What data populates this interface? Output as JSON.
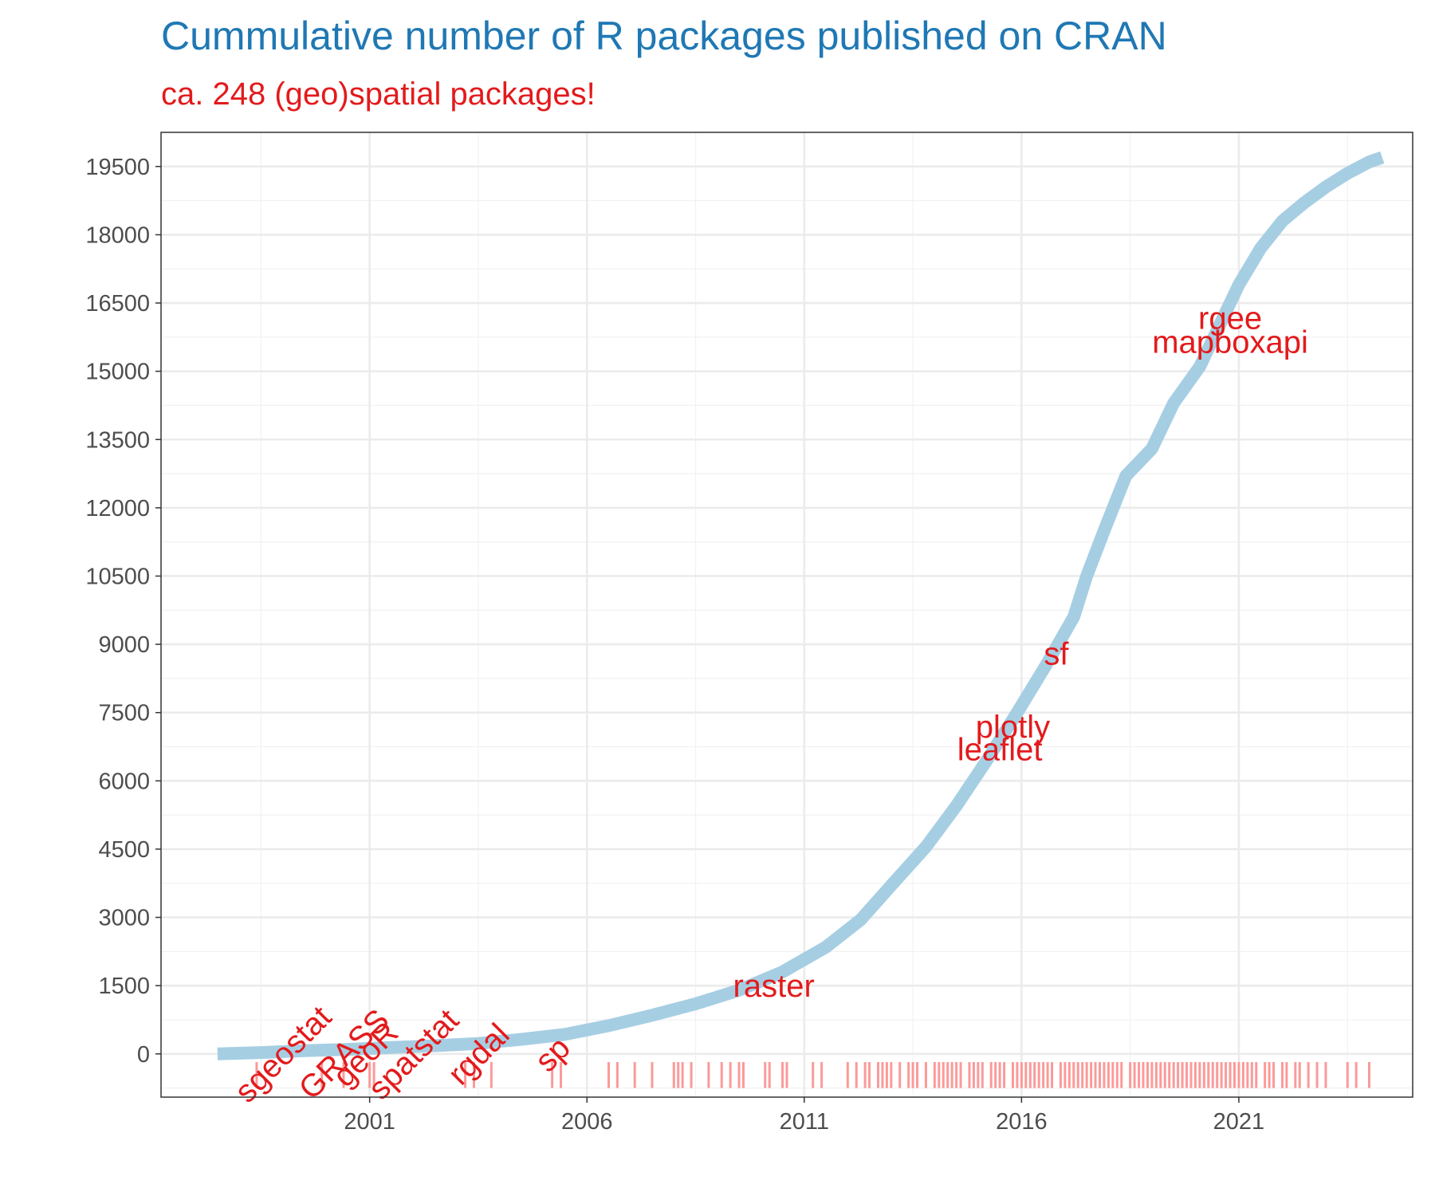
{
  "chart_data": {
    "type": "line",
    "title": "Cummulative number of R packages published on CRAN",
    "subtitle": "ca. 248 (geo)spatial packages!",
    "xlabel": "",
    "ylabel": "",
    "x_ticks": [
      "2001",
      "2006",
      "2011",
      "2016",
      "2021"
    ],
    "y_ticks": [
      0,
      1500,
      3000,
      4500,
      6000,
      7500,
      9000,
      10500,
      12000,
      13500,
      15000,
      16500,
      18000,
      19500
    ],
    "xlim": [
      1996.2,
      2025.0
    ],
    "ylim": [
      -950,
      20250
    ],
    "grid": true,
    "legend": "none",
    "colors": {
      "line": "#a6cee3",
      "labels": "#e31a1c",
      "rug": "#fb9a99",
      "title": "#1f78b4"
    },
    "series": [
      {
        "x": [
          1997.5,
          1998.5,
          1999.5,
          2000.5,
          2001.5,
          2002.5,
          2003.5,
          2004.5,
          2005.5,
          2006.5,
          2007.5,
          2008.5,
          2009.5,
          2010.5,
          2011.5,
          2012.3,
          2013.0,
          2013.8,
          2014.5,
          2015.2,
          2015.9,
          2016.6,
          2017.2,
          2017.5,
          2017.9,
          2018.4,
          2019.0,
          2019.5,
          2020.1,
          2020.6,
          2021.0,
          2021.5,
          2022.0,
          2022.5,
          2023.0,
          2023.5,
          2024.0,
          2024.3
        ],
        "y": [
          0,
          30,
          70,
          100,
          140,
          180,
          230,
          320,
          430,
          620,
          850,
          1100,
          1400,
          1800,
          2350,
          2950,
          3700,
          4550,
          5450,
          6450,
          7500,
          8600,
          9600,
          10500,
          11500,
          12700,
          13300,
          14300,
          15100,
          16100,
          16900,
          17700,
          18300,
          18700,
          19050,
          19350,
          19600,
          19700
        ]
      }
    ],
    "packages": [
      {
        "name": "sgeostat",
        "x": 1999.0,
        "y": 0,
        "rotate": -45
      },
      {
        "name": "GRASS",
        "x": 2000.4,
        "y": 0,
        "rotate": -45
      },
      {
        "name": "geoR",
        "x": 2000.9,
        "y": 0,
        "rotate": -45
      },
      {
        "name": "spatstat",
        "x": 2002.0,
        "y": 0,
        "rotate": -45
      },
      {
        "name": "rgdal",
        "x": 2003.5,
        "y": 0,
        "rotate": -45
      },
      {
        "name": "sp",
        "x": 2005.2,
        "y": 0,
        "rotate": -45
      },
      {
        "name": "raster",
        "x": 2010.3,
        "y": 1500,
        "rotate": 0
      },
      {
        "name": "leaflet",
        "x": 2015.5,
        "y": 6700,
        "rotate": 0
      },
      {
        "name": "plotly",
        "x": 2015.8,
        "y": 7200,
        "rotate": 0
      },
      {
        "name": "sf",
        "x": 2016.8,
        "y": 8800,
        "rotate": 0
      },
      {
        "name": "mapboxapi",
        "x": 2020.8,
        "y": 15650,
        "rotate": 0
      },
      {
        "name": "rgee",
        "x": 2020.8,
        "y": 16180,
        "rotate": 0
      }
    ],
    "rug_x": [
      1998.4,
      1999.9,
      2000.4,
      2001.0,
      2001.1,
      2003.2,
      2003.4,
      2003.8,
      2005.2,
      2005.4,
      2006.5,
      2006.7,
      2007.1,
      2007.5,
      2008.0,
      2008.1,
      2008.2,
      2008.4,
      2008.8,
      2009.1,
      2009.3,
      2009.5,
      2009.6,
      2010.1,
      2010.2,
      2010.5,
      2010.6,
      2011.2,
      2011.4,
      2012.0,
      2012.2,
      2012.4,
      2012.5,
      2012.7,
      2012.8,
      2012.9,
      2013.0,
      2013.2,
      2013.4,
      2013.5,
      2013.6,
      2013.8,
      2014.0,
      2014.1,
      2014.2,
      2014.3,
      2014.4,
      2014.5,
      2014.6,
      2014.8,
      2014.9,
      2015.0,
      2015.1,
      2015.3,
      2015.4,
      2015.5,
      2015.6,
      2015.8,
      2015.9,
      2016.0,
      2016.1,
      2016.2,
      2016.3,
      2016.4,
      2016.5,
      2016.6,
      2016.7,
      2016.9,
      2017.0,
      2017.1,
      2017.2,
      2017.3,
      2017.4,
      2017.5,
      2017.6,
      2017.7,
      2017.8,
      2017.9,
      2018.0,
      2018.1,
      2018.2,
      2018.3,
      2018.5,
      2018.6,
      2018.7,
      2018.8,
      2018.9,
      2019.0,
      2019.1,
      2019.2,
      2019.3,
      2019.4,
      2019.5,
      2019.6,
      2019.7,
      2019.8,
      2019.9,
      2020.0,
      2020.1,
      2020.2,
      2020.3,
      2020.4,
      2020.5,
      2020.6,
      2020.7,
      2020.8,
      2020.9,
      2021.0,
      2021.1,
      2021.2,
      2021.3,
      2021.4,
      2021.6,
      2021.7,
      2021.8,
      2022.0,
      2022.1,
      2022.3,
      2022.4,
      2022.6,
      2022.8,
      2023.0,
      2023.5,
      2023.7,
      2024.0
    ]
  }
}
